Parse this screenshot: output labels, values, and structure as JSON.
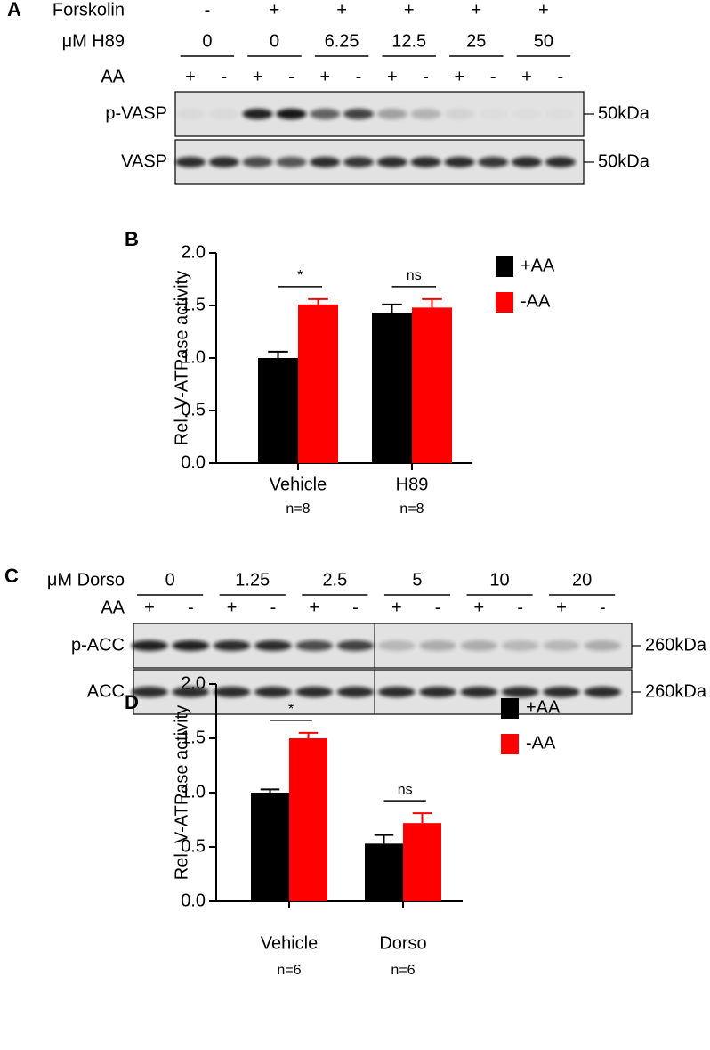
{
  "blot_a": {
    "letter": "A",
    "header_rows": [
      {
        "label": "Forskolin",
        "values": [
          "-",
          "+",
          "+",
          "+",
          "+",
          "+"
        ]
      },
      {
        "label": "μM H89",
        "values": [
          "0",
          "0",
          "6.25",
          "12.5",
          "25",
          "50"
        ]
      },
      {
        "label": "AA",
        "values": [
          "+",
          "-",
          "+",
          "-",
          "+",
          "-",
          "+",
          "-",
          "+",
          "-",
          "+",
          "-"
        ]
      }
    ],
    "bands": [
      {
        "label": "p-VASP",
        "size": "50kDa"
      },
      {
        "label": "VASP",
        "size": "50kDa"
      }
    ]
  },
  "blot_c": {
    "letter": "C",
    "header_rows": [
      {
        "label": "μM Dorso",
        "values": [
          "0",
          "1.25",
          "2.5",
          "5",
          "10",
          "20"
        ]
      },
      {
        "label": "AA",
        "values": [
          "+",
          "-",
          "+",
          "-",
          "+",
          "-",
          "+",
          "-",
          "+",
          "-",
          "+",
          "-"
        ]
      }
    ],
    "bands": [
      {
        "label": "p-ACC",
        "size": "260kDa"
      },
      {
        "label": "ACC",
        "size": "260kDa"
      }
    ]
  },
  "chart_data": [
    {
      "type": "bar",
      "letter": "B",
      "ylabel": "Rel. V-ATPase activity",
      "categories": [
        "Vehicle",
        "H89"
      ],
      "category_notes": [
        "n=8",
        "n=8"
      ],
      "significance": [
        "*",
        "ns"
      ],
      "series": [
        {
          "name": "+AA",
          "color": "#000000",
          "values": [
            1.0,
            1.43
          ],
          "errors": [
            0.06,
            0.08
          ]
        },
        {
          "name": "-AA",
          "color": "#ff0000",
          "values": [
            1.51,
            1.48
          ],
          "errors": [
            0.05,
            0.08
          ]
        }
      ],
      "ylim": [
        0,
        2
      ],
      "yticks": [
        {
          "value": 0,
          "label": "0.0"
        },
        0.5,
        {
          "value": 1,
          "label": "1.0"
        },
        1.5,
        {
          "value": 2,
          "label": "2.0"
        }
      ]
    },
    {
      "type": "bar",
      "letter": "D",
      "ylabel": "Rel. V-ATPase activity",
      "categories": [
        "Vehicle",
        "Dorso"
      ],
      "category_notes": [
        "n=6",
        "n=6"
      ],
      "significance": [
        "*",
        "ns"
      ],
      "series": [
        {
          "name": "+AA",
          "color": "#000000",
          "values": [
            1.0,
            0.53
          ],
          "errors": [
            0.03,
            0.08
          ]
        },
        {
          "name": "-AA",
          "color": "#ff0000",
          "values": [
            1.5,
            0.72
          ],
          "errors": [
            0.05,
            0.09
          ]
        }
      ],
      "ylim": [
        0,
        2
      ],
      "yticks": [
        {
          "value": 0,
          "label": "0.0"
        },
        0.5,
        {
          "value": 1,
          "label": "1.0"
        },
        1.5,
        {
          "value": 2,
          "label": "2.0"
        }
      ]
    }
  ]
}
